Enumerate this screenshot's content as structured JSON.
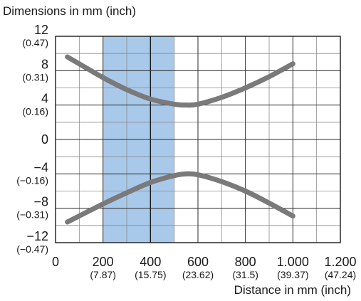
{
  "chart_data": {
    "type": "line",
    "ylabel": "Dimensions in mm (inch)",
    "xlabel": "Distance in mm (inch)",
    "x_ticks": [
      {
        "value": 0,
        "label": "0",
        "sub": ""
      },
      {
        "value": 200,
        "label": "200",
        "sub": "(7.87)"
      },
      {
        "value": 400,
        "label": "400",
        "sub": "(15.75)"
      },
      {
        "value": 600,
        "label": "600",
        "sub": "(23.62)"
      },
      {
        "value": 800,
        "label": "800",
        "sub": "(31.5)"
      },
      {
        "value": 1000,
        "label": "1.000",
        "sub": "(39.37)"
      },
      {
        "value": 1200,
        "label": "1.200",
        "sub": "(47.24)"
      }
    ],
    "y_ticks": [
      {
        "value": 12,
        "label": "12",
        "sub": "(0.47)"
      },
      {
        "value": 8,
        "label": "8",
        "sub": "(0.31)"
      },
      {
        "value": 4,
        "label": "4",
        "sub": "(0.16)"
      },
      {
        "value": 0,
        "label": "0",
        "sub": ""
      },
      {
        "value": -4,
        "label": "−4",
        "sub": "(−0.16)"
      },
      {
        "value": -8,
        "label": "−8",
        "sub": "(−0.31)"
      },
      {
        "value": -12,
        "label": "−12",
        "sub": "(−0.47)"
      }
    ],
    "xlim": [
      0,
      1200
    ],
    "ylim": [
      -12,
      12
    ],
    "grid": true,
    "highlight_band": {
      "x_from": 200,
      "x_to": 500,
      "divider_x": 400,
      "color": "#a9c9ea"
    },
    "series": [
      {
        "values_x": [
          50,
          200,
          300,
          400,
          500,
          550,
          600,
          700,
          800,
          900,
          1000
        ],
        "values_y": [
          9.6,
          7.2,
          5.8,
          4.7,
          4.1,
          4.0,
          4.1,
          4.9,
          6.0,
          7.3,
          8.8
        ]
      },
      {
        "values_x": [
          50,
          200,
          300,
          400,
          500,
          550,
          600,
          700,
          800,
          900,
          1000
        ],
        "values_y": [
          -9.6,
          -7.5,
          -6.2,
          -5.0,
          -4.2,
          -4.0,
          -4.1,
          -4.9,
          -6.0,
          -7.4,
          -8.9
        ]
      }
    ],
    "line_color": "#7a7a7a"
  }
}
